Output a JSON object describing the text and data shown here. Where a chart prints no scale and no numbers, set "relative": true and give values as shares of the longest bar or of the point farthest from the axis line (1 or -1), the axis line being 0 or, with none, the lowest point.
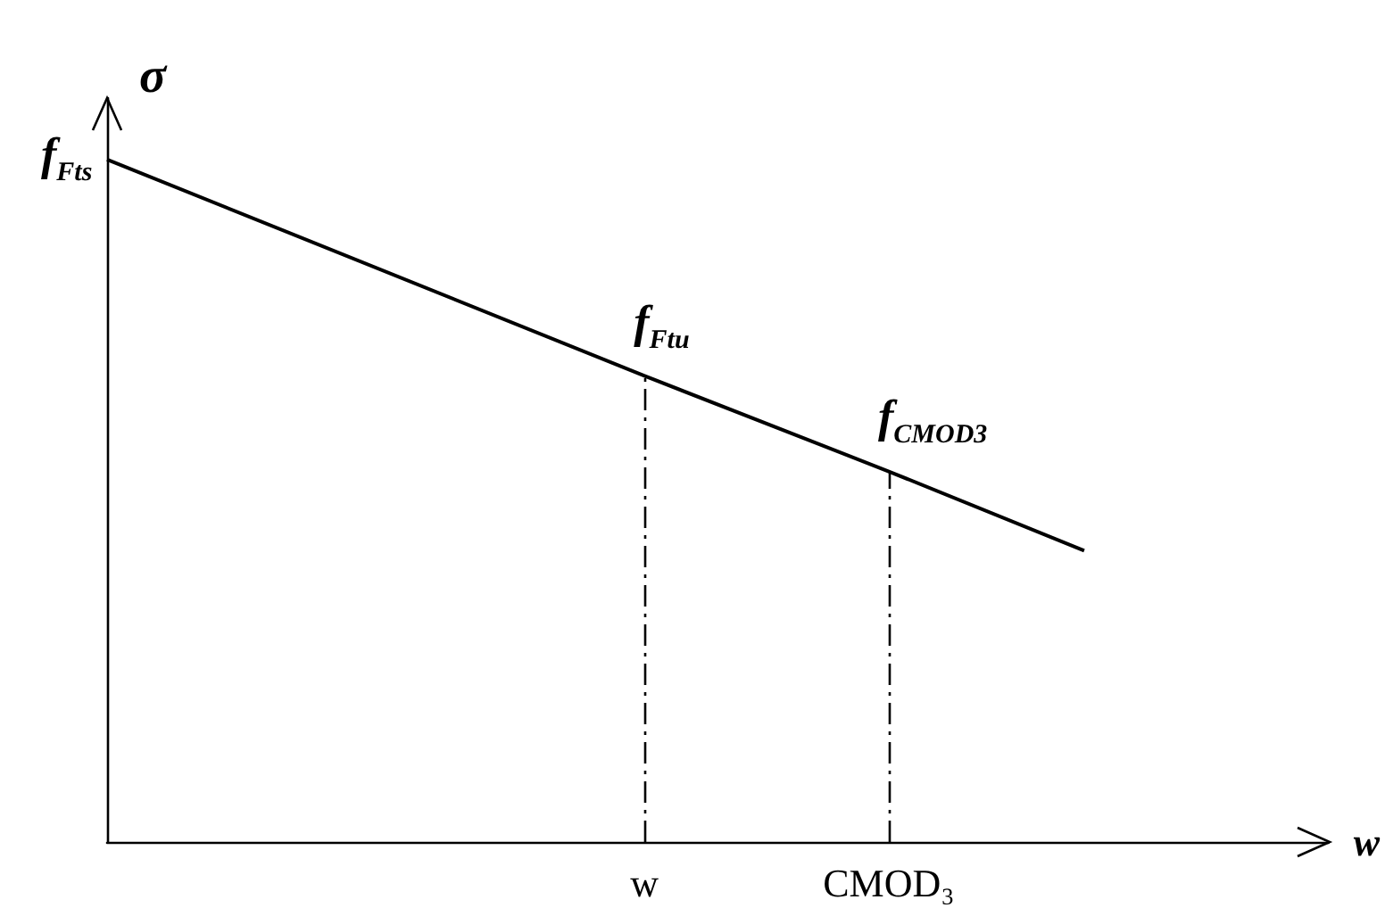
{
  "chart_data": {
    "type": "line",
    "relative": true,
    "ylabel": "σ",
    "xlabel": "w",
    "categories": [
      null,
      null,
      null,
      null,
      null,
      null,
      null,
      null,
      null,
      null,
      null,
      "w",
      null,
      null,
      null,
      null,
      "CMOD₃",
      null,
      null,
      null,
      null,
      null,
      null,
      null,
      null,
      null
    ],
    "values": [
      1,
      null,
      null,
      null,
      null,
      null,
      null,
      null,
      null,
      null,
      null,
      0.683,
      null,
      null,
      null,
      null,
      0.543,
      null,
      null,
      null,
      0.427,
      null,
      null,
      null,
      null,
      null
    ],
    "color": "#000000",
    "ylim": [
      0,
      1.09
    ],
    "ref_lines": [
      {
        "axis": "x",
        "value": "w",
        "line_style": "dashed",
        "color": "#000000"
      },
      {
        "axis": "x",
        "value": "CMOD₃",
        "line_style": "dashed",
        "color": "#000000"
      }
    ],
    "annotations": [
      "f$_{Fts}$",
      "f$_{Ftu}$",
      "f$_{CMOD3}$"
    ],
    "grid": false,
    "line_style": "solid"
  }
}
